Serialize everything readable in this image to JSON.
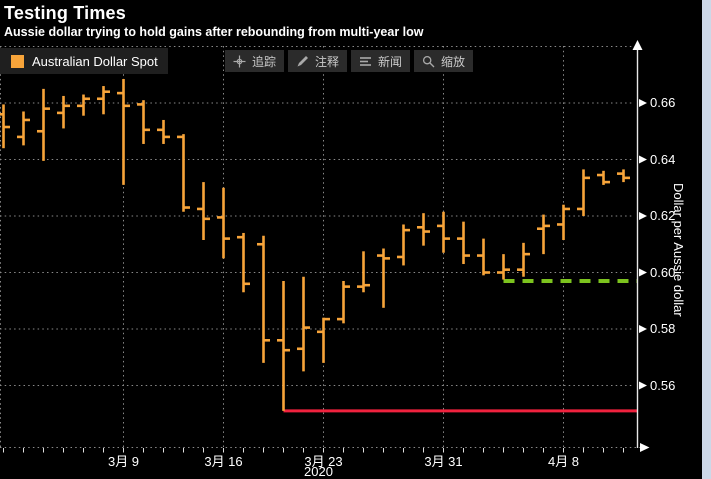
{
  "header": {
    "title": "Testing Times",
    "subtitle": "Aussie dollar trying to hold gains after rebounding from multi-year low"
  },
  "legend": {
    "series_label": "Australian Dollar Spot",
    "swatch_color": "#F7A43A"
  },
  "toolbar": {
    "buttons": [
      {
        "label": "追踪",
        "icon": "crosshair-icon"
      },
      {
        "label": "注释",
        "icon": "pencil-icon"
      },
      {
        "label": "新闻",
        "icon": "news-lines-icon"
      },
      {
        "label": "缩放",
        "icon": "magnifier-icon"
      }
    ]
  },
  "colors": {
    "background": "#000000",
    "bar_orange": "#F7A43A",
    "red_line": "#F0223E",
    "green_line": "#7CC31E",
    "grid_gray": "#8A8A8A",
    "axis_white": "#E8E8E8",
    "panel_gray": "#1F1F1F",
    "button_gray": "#2B2B2B"
  },
  "chart_data": {
    "type": "bar",
    "subtype": "ohlc-hloc-bars",
    "title": "Testing Times",
    "series_name": "Australian Dollar Spot",
    "series_color": "#F7A43A",
    "y_axis": {
      "side": "right",
      "title": "Dollar per Aussie dollar",
      "tick_labels": [
        "0.66",
        "0.64",
        "0.62",
        "0.60",
        "0.58",
        "0.56"
      ],
      "tick_values": [
        0.66,
        0.64,
        0.62,
        0.6,
        0.58,
        0.56
      ],
      "ylim": [
        0.54,
        0.68
      ],
      "grid": true
    },
    "x_axis": {
      "tick_labels": [
        "3月 9",
        "3月 16",
        "3月 23",
        "3月 31",
        "4月 8"
      ],
      "tick_bar_indices": [
        6,
        11,
        16,
        22,
        28
      ],
      "year_label": "2020",
      "grid": true
    },
    "bars": [
      {
        "date": "2020-02-28",
        "o": 0.656,
        "h": 0.6595,
        "l": 0.644,
        "c": 0.6515
      },
      {
        "date": "2020-03-02",
        "o": 0.648,
        "h": 0.657,
        "l": 0.645,
        "c": 0.654
      },
      {
        "date": "2020-03-03",
        "o": 0.65,
        "h": 0.665,
        "l": 0.6395,
        "c": 0.658
      },
      {
        "date": "2020-03-04",
        "o": 0.6565,
        "h": 0.6625,
        "l": 0.651,
        "c": 0.659
      },
      {
        "date": "2020-03-05",
        "o": 0.659,
        "h": 0.663,
        "l": 0.6555,
        "c": 0.6615
      },
      {
        "date": "2020-03-06",
        "o": 0.6615,
        "h": 0.666,
        "l": 0.656,
        "c": 0.664
      },
      {
        "date": "2020-03-09",
        "o": 0.6635,
        "h": 0.6685,
        "l": 0.631,
        "c": 0.659
      },
      {
        "date": "2020-03-10",
        "o": 0.6595,
        "h": 0.661,
        "l": 0.6455,
        "c": 0.6505
      },
      {
        "date": "2020-03-11",
        "o": 0.6505,
        "h": 0.654,
        "l": 0.6455,
        "c": 0.648
      },
      {
        "date": "2020-03-12",
        "o": 0.648,
        "h": 0.649,
        "l": 0.6215,
        "c": 0.623
      },
      {
        "date": "2020-03-13",
        "o": 0.6225,
        "h": 0.632,
        "l": 0.6115,
        "c": 0.619
      },
      {
        "date": "2020-03-16",
        "o": 0.6195,
        "h": 0.63,
        "l": 0.605,
        "c": 0.612
      },
      {
        "date": "2020-03-17",
        "o": 0.6125,
        "h": 0.614,
        "l": 0.593,
        "c": 0.596
      },
      {
        "date": "2020-03-18",
        "o": 0.61,
        "h": 0.613,
        "l": 0.568,
        "c": 0.576
      },
      {
        "date": "2020-03-19",
        "o": 0.576,
        "h": 0.597,
        "l": 0.551,
        "c": 0.5725
      },
      {
        "date": "2020-03-20",
        "o": 0.573,
        "h": 0.5985,
        "l": 0.565,
        "c": 0.5805
      },
      {
        "date": "2020-03-23",
        "o": 0.579,
        "h": 0.584,
        "l": 0.568,
        "c": 0.5835
      },
      {
        "date": "2020-03-24",
        "o": 0.5835,
        "h": 0.597,
        "l": 0.582,
        "c": 0.595
      },
      {
        "date": "2020-03-25",
        "o": 0.595,
        "h": 0.6075,
        "l": 0.593,
        "c": 0.5955
      },
      {
        "date": "2020-03-26",
        "o": 0.606,
        "h": 0.6085,
        "l": 0.5875,
        "c": 0.605
      },
      {
        "date": "2020-03-27",
        "o": 0.6055,
        "h": 0.617,
        "l": 0.6025,
        "c": 0.615
      },
      {
        "date": "2020-03-30",
        "o": 0.616,
        "h": 0.621,
        "l": 0.6095,
        "c": 0.6145
      },
      {
        "date": "2020-03-31",
        "o": 0.6165,
        "h": 0.6215,
        "l": 0.607,
        "c": 0.612
      },
      {
        "date": "2020-04-01",
        "o": 0.612,
        "h": 0.618,
        "l": 0.603,
        "c": 0.606
      },
      {
        "date": "2020-04-02",
        "o": 0.606,
        "h": 0.612,
        "l": 0.599,
        "c": 0.6
      },
      {
        "date": "2020-04-03",
        "o": 0.6,
        "h": 0.6065,
        "l": 0.5975,
        "c": 0.601
      },
      {
        "date": "2020-04-06",
        "o": 0.601,
        "h": 0.6105,
        "l": 0.5985,
        "c": 0.6065
      },
      {
        "date": "2020-04-07",
        "o": 0.6155,
        "h": 0.6205,
        "l": 0.6065,
        "c": 0.6165
      },
      {
        "date": "2020-04-08",
        "o": 0.617,
        "h": 0.624,
        "l": 0.6115,
        "c": 0.6225
      },
      {
        "date": "2020-04-09",
        "o": 0.6225,
        "h": 0.6365,
        "l": 0.62,
        "c": 0.6335
      },
      {
        "date": "2020-04-13",
        "o": 0.6345,
        "h": 0.636,
        "l": 0.631,
        "c": 0.632
      },
      {
        "date": "2020-04-14",
        "o": 0.635,
        "h": 0.6365,
        "l": 0.632,
        "c": 0.6335
      }
    ],
    "hlines": [
      {
        "value": 0.551,
        "style": "solid",
        "color": "#F0223E",
        "starts_at_bar": 14
      },
      {
        "value": 0.597,
        "style": "dashed",
        "color": "#7CC31E",
        "starts_at_bar": 25
      }
    ],
    "legend_position": "top-left"
  }
}
